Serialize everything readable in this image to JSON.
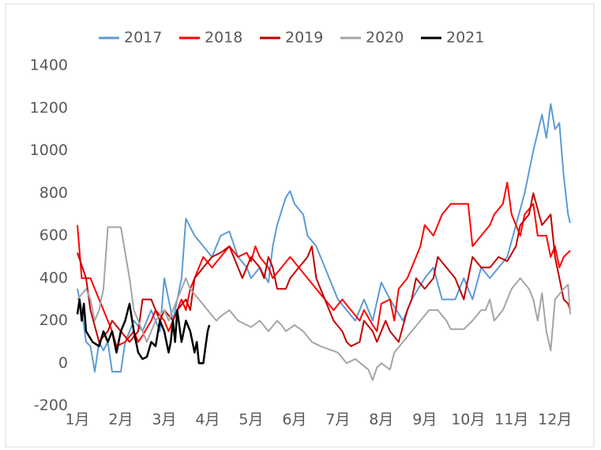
{
  "chart_data": {
    "type": "line",
    "ylim": [
      -200,
      1400
    ],
    "yticks": [
      -200,
      0,
      200,
      400,
      600,
      800,
      1000,
      1200,
      1400
    ],
    "xlim": [
      1,
      12.35
    ],
    "xticks": [
      {
        "value": 1,
        "label": "1月"
      },
      {
        "value": 2,
        "label": "2月"
      },
      {
        "value": 3,
        "label": "3月"
      },
      {
        "value": 4,
        "label": "4月"
      },
      {
        "value": 5,
        "label": "5月"
      },
      {
        "value": 6,
        "label": "6月"
      },
      {
        "value": 7,
        "label": "7月"
      },
      {
        "value": 8,
        "label": "8月"
      },
      {
        "value": 9,
        "label": "9月"
      },
      {
        "value": 10,
        "label": "10月"
      },
      {
        "value": 11,
        "label": "11月"
      },
      {
        "value": 12,
        "label": "12月"
      }
    ],
    "grid": false,
    "legend": "top",
    "series": [
      {
        "name": "2017",
        "color": "#5b9bd5",
        "x": [
          1.0,
          1.1,
          1.2,
          1.3,
          1.4,
          1.5,
          1.6,
          1.7,
          1.8,
          2.0,
          2.1,
          2.3,
          2.5,
          2.7,
          2.9,
          3.0,
          3.2,
          3.4,
          3.5,
          3.7,
          3.9,
          4.1,
          4.3,
          4.5,
          4.7,
          4.9,
          5.0,
          5.2,
          5.4,
          5.5,
          5.6,
          5.8,
          5.9,
          6.0,
          6.2,
          6.3,
          6.5,
          6.7,
          6.9,
          7.0,
          7.2,
          7.4,
          7.6,
          7.8,
          8.0,
          8.2,
          8.5,
          8.7,
          9.0,
          9.2,
          9.4,
          9.7,
          9.9,
          10.1,
          10.3,
          10.5,
          10.7,
          10.9,
          11.1,
          11.3,
          11.5,
          11.7,
          11.8,
          11.9,
          12.0,
          12.1,
          12.2,
          12.3,
          12.35
        ],
        "values": [
          350,
          250,
          100,
          80,
          -40,
          100,
          60,
          100,
          -40,
          -40,
          100,
          200,
          150,
          250,
          150,
          400,
          200,
          400,
          680,
          600,
          550,
          500,
          600,
          620,
          500,
          450,
          400,
          450,
          380,
          550,
          650,
          780,
          810,
          750,
          700,
          600,
          550,
          450,
          350,
          300,
          250,
          200,
          300,
          200,
          380,
          300,
          200,
          300,
          400,
          450,
          300,
          300,
          400,
          300,
          450,
          400,
          450,
          500,
          650,
          800,
          1000,
          1170,
          1060,
          1220,
          1100,
          1130,
          880,
          700,
          660
        ]
      },
      {
        "name": "2018",
        "color": "#ff0000",
        "x": [
          1.0,
          1.1,
          1.3,
          1.5,
          1.7,
          1.8,
          1.9,
          2.1,
          2.3,
          2.4,
          2.5,
          2.7,
          2.8,
          3.0,
          3.1,
          3.3,
          3.4,
          3.5,
          3.6,
          3.8,
          3.9,
          4.1,
          4.3,
          4.5,
          4.7,
          4.9,
          5.0,
          5.1,
          5.2,
          5.4,
          5.5,
          5.7,
          5.9,
          6.1,
          6.3,
          6.5,
          6.7,
          6.9,
          7.1,
          7.3,
          7.5,
          7.6,
          7.8,
          7.9,
          8.0,
          8.2,
          8.3,
          8.4,
          8.6,
          8.8,
          8.9,
          9.0,
          9.2,
          9.4,
          9.6,
          10.0,
          10.1,
          10.3,
          10.5,
          10.6,
          10.8,
          10.9,
          11.0,
          11.2,
          11.3,
          11.5,
          11.6,
          11.8,
          11.9,
          12.0,
          12.1,
          12.2,
          12.3,
          12.35
        ],
        "values": [
          650,
          400,
          400,
          300,
          200,
          150,
          80,
          100,
          150,
          100,
          130,
          200,
          250,
          200,
          150,
          250,
          300,
          250,
          350,
          450,
          500,
          450,
          500,
          550,
          500,
          520,
          480,
          550,
          500,
          450,
          400,
          450,
          500,
          450,
          400,
          350,
          300,
          250,
          300,
          250,
          200,
          250,
          180,
          150,
          280,
          300,
          200,
          350,
          400,
          500,
          550,
          650,
          600,
          700,
          750,
          750,
          550,
          600,
          650,
          700,
          750,
          850,
          700,
          600,
          700,
          750,
          600,
          600,
          500,
          550,
          450,
          500,
          520,
          530
        ]
      },
      {
        "name": "2019",
        "color": "#c00000",
        "x": [
          1.0,
          1.2,
          1.3,
          1.5,
          1.7,
          1.8,
          2.0,
          2.2,
          2.4,
          2.5,
          2.7,
          2.9,
          3.0,
          3.2,
          3.3,
          3.5,
          3.6,
          3.7,
          3.9,
          4.1,
          4.3,
          4.5,
          4.7,
          4.8,
          4.9,
          5.0,
          5.2,
          5.3,
          5.4,
          5.5,
          5.6,
          5.8,
          5.9,
          6.1,
          6.3,
          6.4,
          6.5,
          6.7,
          6.9,
          7.1,
          7.2,
          7.3,
          7.5,
          7.6,
          7.8,
          7.9,
          8.1,
          8.2,
          8.4,
          8.6,
          8.7,
          8.8,
          9.0,
          9.2,
          9.3,
          9.5,
          9.7,
          9.9,
          10.1,
          10.3,
          10.5,
          10.7,
          10.9,
          11.1,
          11.2,
          11.4,
          11.5,
          11.7,
          11.9,
          12.0,
          12.1,
          12.2,
          12.3,
          12.35
        ],
        "values": [
          520,
          400,
          250,
          100,
          150,
          200,
          150,
          100,
          150,
          300,
          300,
          200,
          250,
          200,
          250,
          300,
          250,
          400,
          450,
          500,
          520,
          550,
          450,
          400,
          450,
          500,
          450,
          400,
          500,
          450,
          350,
          350,
          400,
          450,
          500,
          550,
          400,
          300,
          200,
          150,
          100,
          80,
          100,
          200,
          150,
          100,
          200,
          150,
          100,
          250,
          300,
          400,
          350,
          400,
          500,
          450,
          400,
          300,
          500,
          450,
          450,
          500,
          480,
          550,
          650,
          700,
          800,
          650,
          700,
          500,
          400,
          300,
          280,
          250
        ]
      },
      {
        "name": "2020",
        "color": "#a5a5a5",
        "x": [
          1.0,
          1.2,
          1.3,
          1.4,
          1.5,
          1.6,
          1.7,
          2.0,
          2.2,
          2.3,
          2.5,
          2.6,
          2.7,
          2.8,
          3.0,
          3.1,
          3.3,
          3.5,
          3.6,
          3.8,
          4.0,
          4.2,
          4.3,
          4.5,
          4.7,
          4.9,
          5.0,
          5.2,
          5.4,
          5.6,
          5.7,
          5.8,
          6.0,
          6.2,
          6.4,
          6.6,
          7.0,
          7.2,
          7.4,
          7.7,
          7.8,
          7.9,
          8.0,
          8.2,
          8.3,
          8.5,
          8.7,
          8.9,
          9.1,
          9.3,
          9.5,
          9.6,
          9.9,
          10.1,
          10.3,
          10.4,
          10.5,
          10.6,
          10.8,
          11.0,
          11.2,
          11.4,
          11.5,
          11.6,
          11.7,
          11.8,
          11.9,
          12.0,
          12.2,
          12.3,
          12.35
        ],
        "values": [
          300,
          350,
          300,
          200,
          250,
          350,
          640,
          640,
          400,
          250,
          150,
          100,
          150,
          200,
          250,
          200,
          300,
          400,
          350,
          300,
          250,
          200,
          220,
          250,
          200,
          180,
          170,
          200,
          150,
          200,
          180,
          150,
          180,
          150,
          100,
          80,
          50,
          0,
          20,
          -30,
          -80,
          -20,
          0,
          -30,
          50,
          100,
          150,
          200,
          250,
          250,
          200,
          160,
          160,
          200,
          250,
          250,
          300,
          200,
          250,
          350,
          400,
          350,
          300,
          200,
          330,
          150,
          60,
          300,
          350,
          370,
          230
        ]
      },
      {
        "name": "2021",
        "color": "#000000",
        "x": [
          1.0,
          1.05,
          1.1,
          1.15,
          1.2,
          1.35,
          1.5,
          1.6,
          1.7,
          1.8,
          1.9,
          2.0,
          2.1,
          2.2,
          2.3,
          2.4,
          2.5,
          2.6,
          2.7,
          2.8,
          2.9,
          3.0,
          3.1,
          3.15,
          3.2,
          3.25,
          3.3,
          3.4,
          3.5,
          3.6,
          3.7,
          3.75,
          3.8,
          3.9,
          4.0,
          4.04
        ],
        "values": [
          230,
          300,
          200,
          280,
          150,
          100,
          80,
          150,
          100,
          150,
          50,
          150,
          200,
          280,
          150,
          50,
          20,
          30,
          100,
          80,
          200,
          150,
          50,
          100,
          200,
          100,
          250,
          100,
          200,
          150,
          50,
          100,
          0,
          0,
          150,
          180
        ]
      }
    ]
  }
}
